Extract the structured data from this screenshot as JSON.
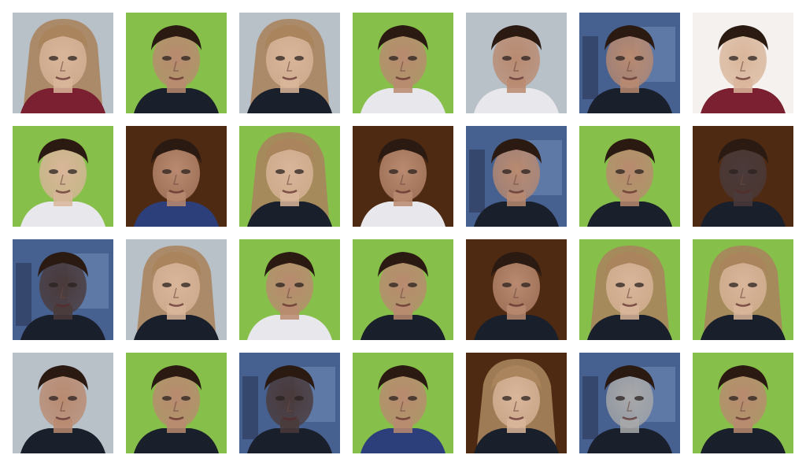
{
  "grid": {
    "rows": 4,
    "columns": 7
  },
  "palette": {
    "green": "#86bf4a",
    "brown": "#4e2a12",
    "blue": "#46618f",
    "gray": "#b8c0c8",
    "skin_light": "#d9b59a",
    "skin_mid": "#b98a70",
    "hair_dark": "#2a1a12",
    "hair_blond": "#a9845d",
    "shirt_dark": "#1a1f2c",
    "shirt_white": "#e8e8ec"
  },
  "tiles": [
    {
      "bg": "gray",
      "hair": "blond",
      "shirt": "red",
      "face": "light"
    },
    {
      "bg": "green",
      "hair": "dark",
      "shirt": "dark",
      "face": "mid"
    },
    {
      "bg": "gray",
      "hair": "blond",
      "shirt": "dark",
      "face": "light"
    },
    {
      "bg": "green",
      "hair": "dark",
      "shirt": "white",
      "face": "mid"
    },
    {
      "bg": "gray",
      "hair": "dark",
      "shirt": "white",
      "face": "mid"
    },
    {
      "bg": "blue",
      "hair": "dark",
      "shirt": "dark",
      "face": "mid"
    },
    {
      "bg": "white",
      "hair": "dark",
      "shirt": "red",
      "face": "light"
    },
    {
      "bg": "green",
      "hair": "dark",
      "shirt": "white",
      "face": "light"
    },
    {
      "bg": "brown",
      "hair": "dark",
      "shirt": "blue",
      "face": "mid"
    },
    {
      "bg": "green",
      "hair": "blond",
      "shirt": "dark",
      "face": "light"
    },
    {
      "bg": "brown",
      "hair": "dark",
      "shirt": "white",
      "face": "mid"
    },
    {
      "bg": "blue",
      "hair": "dark",
      "shirt": "dark",
      "face": "mid"
    },
    {
      "bg": "green",
      "hair": "dark",
      "shirt": "dark",
      "face": "mid"
    },
    {
      "bg": "brown",
      "hair": "dark",
      "shirt": "dark",
      "face": "dim"
    },
    {
      "bg": "blue",
      "hair": "dark",
      "shirt": "dark",
      "face": "dim"
    },
    {
      "bg": "gray",
      "hair": "blond",
      "shirt": "dark",
      "face": "light"
    },
    {
      "bg": "green",
      "hair": "dark",
      "shirt": "white",
      "face": "mid"
    },
    {
      "bg": "green",
      "hair": "dark",
      "shirt": "dark",
      "face": "mid"
    },
    {
      "bg": "brown",
      "hair": "dark",
      "shirt": "dark",
      "face": "mid"
    },
    {
      "bg": "green",
      "hair": "blond",
      "shirt": "dark",
      "face": "light"
    },
    {
      "bg": "green",
      "hair": "blond",
      "shirt": "dark",
      "face": "light"
    },
    {
      "bg": "gray",
      "hair": "dark",
      "shirt": "dark",
      "face": "mid"
    },
    {
      "bg": "green",
      "hair": "dark",
      "shirt": "dark",
      "face": "mid"
    },
    {
      "bg": "blue",
      "hair": "dark",
      "shirt": "dark",
      "face": "dim"
    },
    {
      "bg": "green",
      "hair": "dark",
      "shirt": "blue",
      "face": "mid"
    },
    {
      "bg": "brown",
      "hair": "blond",
      "shirt": "dark",
      "face": "light"
    },
    {
      "bg": "blue",
      "hair": "dark",
      "shirt": "dark",
      "face": "gray"
    },
    {
      "bg": "green",
      "hair": "dark",
      "shirt": "dark",
      "face": "mid"
    }
  ]
}
